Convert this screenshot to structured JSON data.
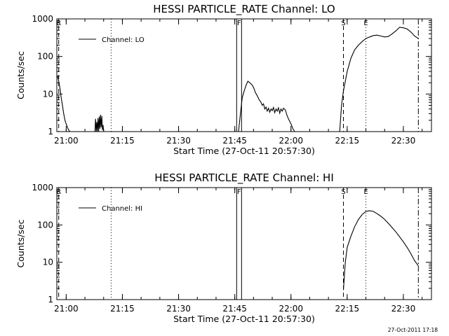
{
  "chart_data": [
    {
      "type": "line",
      "title": "HESSI PARTICLE_RATE Channel: LO",
      "xlabel": "Start Time (27-Oct-11 20:57:30)",
      "ylabel": "Counts/sec",
      "y_scale": "log",
      "ylim": [
        1,
        1000
      ],
      "xlim": [
        "20:57:30",
        "22:37:30"
      ],
      "x_ticks": [
        "21:00",
        "21:15",
        "21:30",
        "21:45",
        "22:00",
        "22:15",
        "22:30"
      ],
      "y_ticks": [
        "1",
        "10",
        "100",
        "1000"
      ],
      "grid": false,
      "legend": {
        "position": "top-left",
        "entries": [
          "Channel: LO"
        ]
      },
      "series": [
        {
          "name": "Channel: LO",
          "segments": [
            {
              "x": [
                "20:57:40",
                "20:58:00",
                "20:58:20",
                "20:58:40",
                "20:59:00",
                "20:59:20",
                "20:59:40",
                "21:00:00",
                "21:00:20",
                "21:00:40",
                "21:01:00"
              ],
              "y": [
                30,
                22,
                14,
                8,
                5,
                3,
                2,
                1.6,
                1.3,
                1.1,
                1
              ]
            },
            {
              "x": [
                "21:07:40",
                "21:07:50",
                "21:08:00",
                "21:08:10",
                "21:08:20",
                "21:08:30",
                "21:08:40",
                "21:08:50",
                "21:09:00",
                "21:09:10",
                "21:09:20",
                "21:09:30",
                "21:09:40",
                "21:09:50",
                "21:10:00"
              ],
              "y": [
                1,
                2.2,
                1,
                1.8,
                1,
                2.3,
                1,
                2.5,
                1.2,
                2.8,
                1.3,
                2.6,
                1.1,
                1.5,
                1
              ]
            },
            {
              "x": [
                "21:46:00",
                "21:46:30",
                "21:47:00",
                "21:47:30",
                "21:48:00",
                "21:48:30",
                "21:49:00",
                "21:49:30",
                "21:50:00",
                "21:50:30",
                "21:51:00",
                "21:51:30",
                "21:52:00",
                "21:52:20",
                "21:52:40",
                "21:53:00",
                "21:53:20",
                "21:53:40",
                "21:54:00",
                "21:54:20",
                "21:54:40",
                "21:55:00",
                "21:55:20",
                "21:55:40",
                "21:56:00",
                "21:56:20",
                "21:56:40",
                "21:57:00",
                "21:57:20",
                "21:57:40",
                "21:58:00",
                "21:58:30",
                "21:59:00",
                "21:59:30",
                "22:00:00",
                "22:00:30",
                "22:01:00"
              ],
              "y": [
                1,
                3,
                8,
                12,
                17,
                22,
                20,
                18,
                15,
                11,
                9,
                7,
                6,
                5,
                5.5,
                4,
                4.5,
                3.5,
                4.2,
                3.3,
                4,
                3.6,
                4.4,
                3.2,
                4,
                3.5,
                4.3,
                3.1,
                4,
                3.5,
                4.2,
                3.8,
                2.6,
                2,
                1.6,
                1.2,
                1
              ]
            },
            {
              "x": [
                "22:13:00",
                "22:13:30",
                "22:14:00",
                "22:15:00",
                "22:16:00",
                "22:17:00",
                "22:18:00",
                "22:19:00",
                "22:20:00",
                "22:21:00",
                "22:22:00",
                "22:23:00",
                "22:24:00",
                "22:25:00",
                "22:26:00",
                "22:27:00",
                "22:28:00",
                "22:29:00",
                "22:30:00",
                "22:31:00",
                "22:32:00",
                "22:33:00",
                "22:34:00"
              ],
              "y": [
                1,
                5,
                12,
                40,
                90,
                150,
                200,
                250,
                300,
                330,
                360,
                370,
                350,
                330,
                340,
                400,
                480,
                600,
                580,
                540,
                450,
                350,
                300
              ]
            }
          ]
        }
      ],
      "annotations": [
        {
          "label": "F",
          "x": "21:46:00"
        },
        {
          "label": "S",
          "x": "22:14:00"
        },
        {
          "label": "E",
          "x": "22:20:00"
        },
        {
          "label": "R",
          "x": "20:58:00"
        }
      ]
    },
    {
      "type": "line",
      "title": "HESSI PARTICLE_RATE Channel: HI",
      "xlabel": "Start Time (27-Oct-11 20:57:30)",
      "ylabel": "Counts/sec",
      "y_scale": "log",
      "ylim": [
        1,
        1000
      ],
      "xlim": [
        "20:57:30",
        "22:37:30"
      ],
      "x_ticks": [
        "21:00",
        "21:15",
        "21:30",
        "21:45",
        "22:00",
        "22:15",
        "22:30"
      ],
      "y_ticks": [
        "1",
        "10",
        "100",
        "1000"
      ],
      "grid": false,
      "legend": {
        "position": "top-left",
        "entries": [
          "Channel: HI"
        ]
      },
      "series": [
        {
          "name": "Channel: HI",
          "segments": [
            {
              "x": [
                "22:14:00",
                "22:14:30",
                "22:15:00",
                "22:16:00",
                "22:17:00",
                "22:18:00",
                "22:19:00",
                "22:20:00",
                "22:21:00",
                "22:22:00",
                "22:23:00",
                "22:24:00",
                "22:25:00",
                "22:26:00",
                "22:27:00",
                "22:28:00",
                "22:29:00",
                "22:30:00",
                "22:31:00",
                "22:32:00",
                "22:33:00",
                "22:34:00"
              ],
              "y": [
                1.8,
                10,
                25,
                50,
                90,
                140,
                190,
                230,
                240,
                230,
                200,
                170,
                140,
                110,
                85,
                65,
                48,
                35,
                25,
                17,
                11,
                8
              ]
            }
          ]
        }
      ],
      "annotations": [
        {
          "label": "F",
          "x": "21:46:00"
        },
        {
          "label": "S",
          "x": "22:14:00"
        },
        {
          "label": "E",
          "x": "22:20:00"
        },
        {
          "label": "R",
          "x": "20:58:00"
        }
      ]
    }
  ],
  "footer": {
    "timestamp": "27-Oct-2011 17:18"
  }
}
